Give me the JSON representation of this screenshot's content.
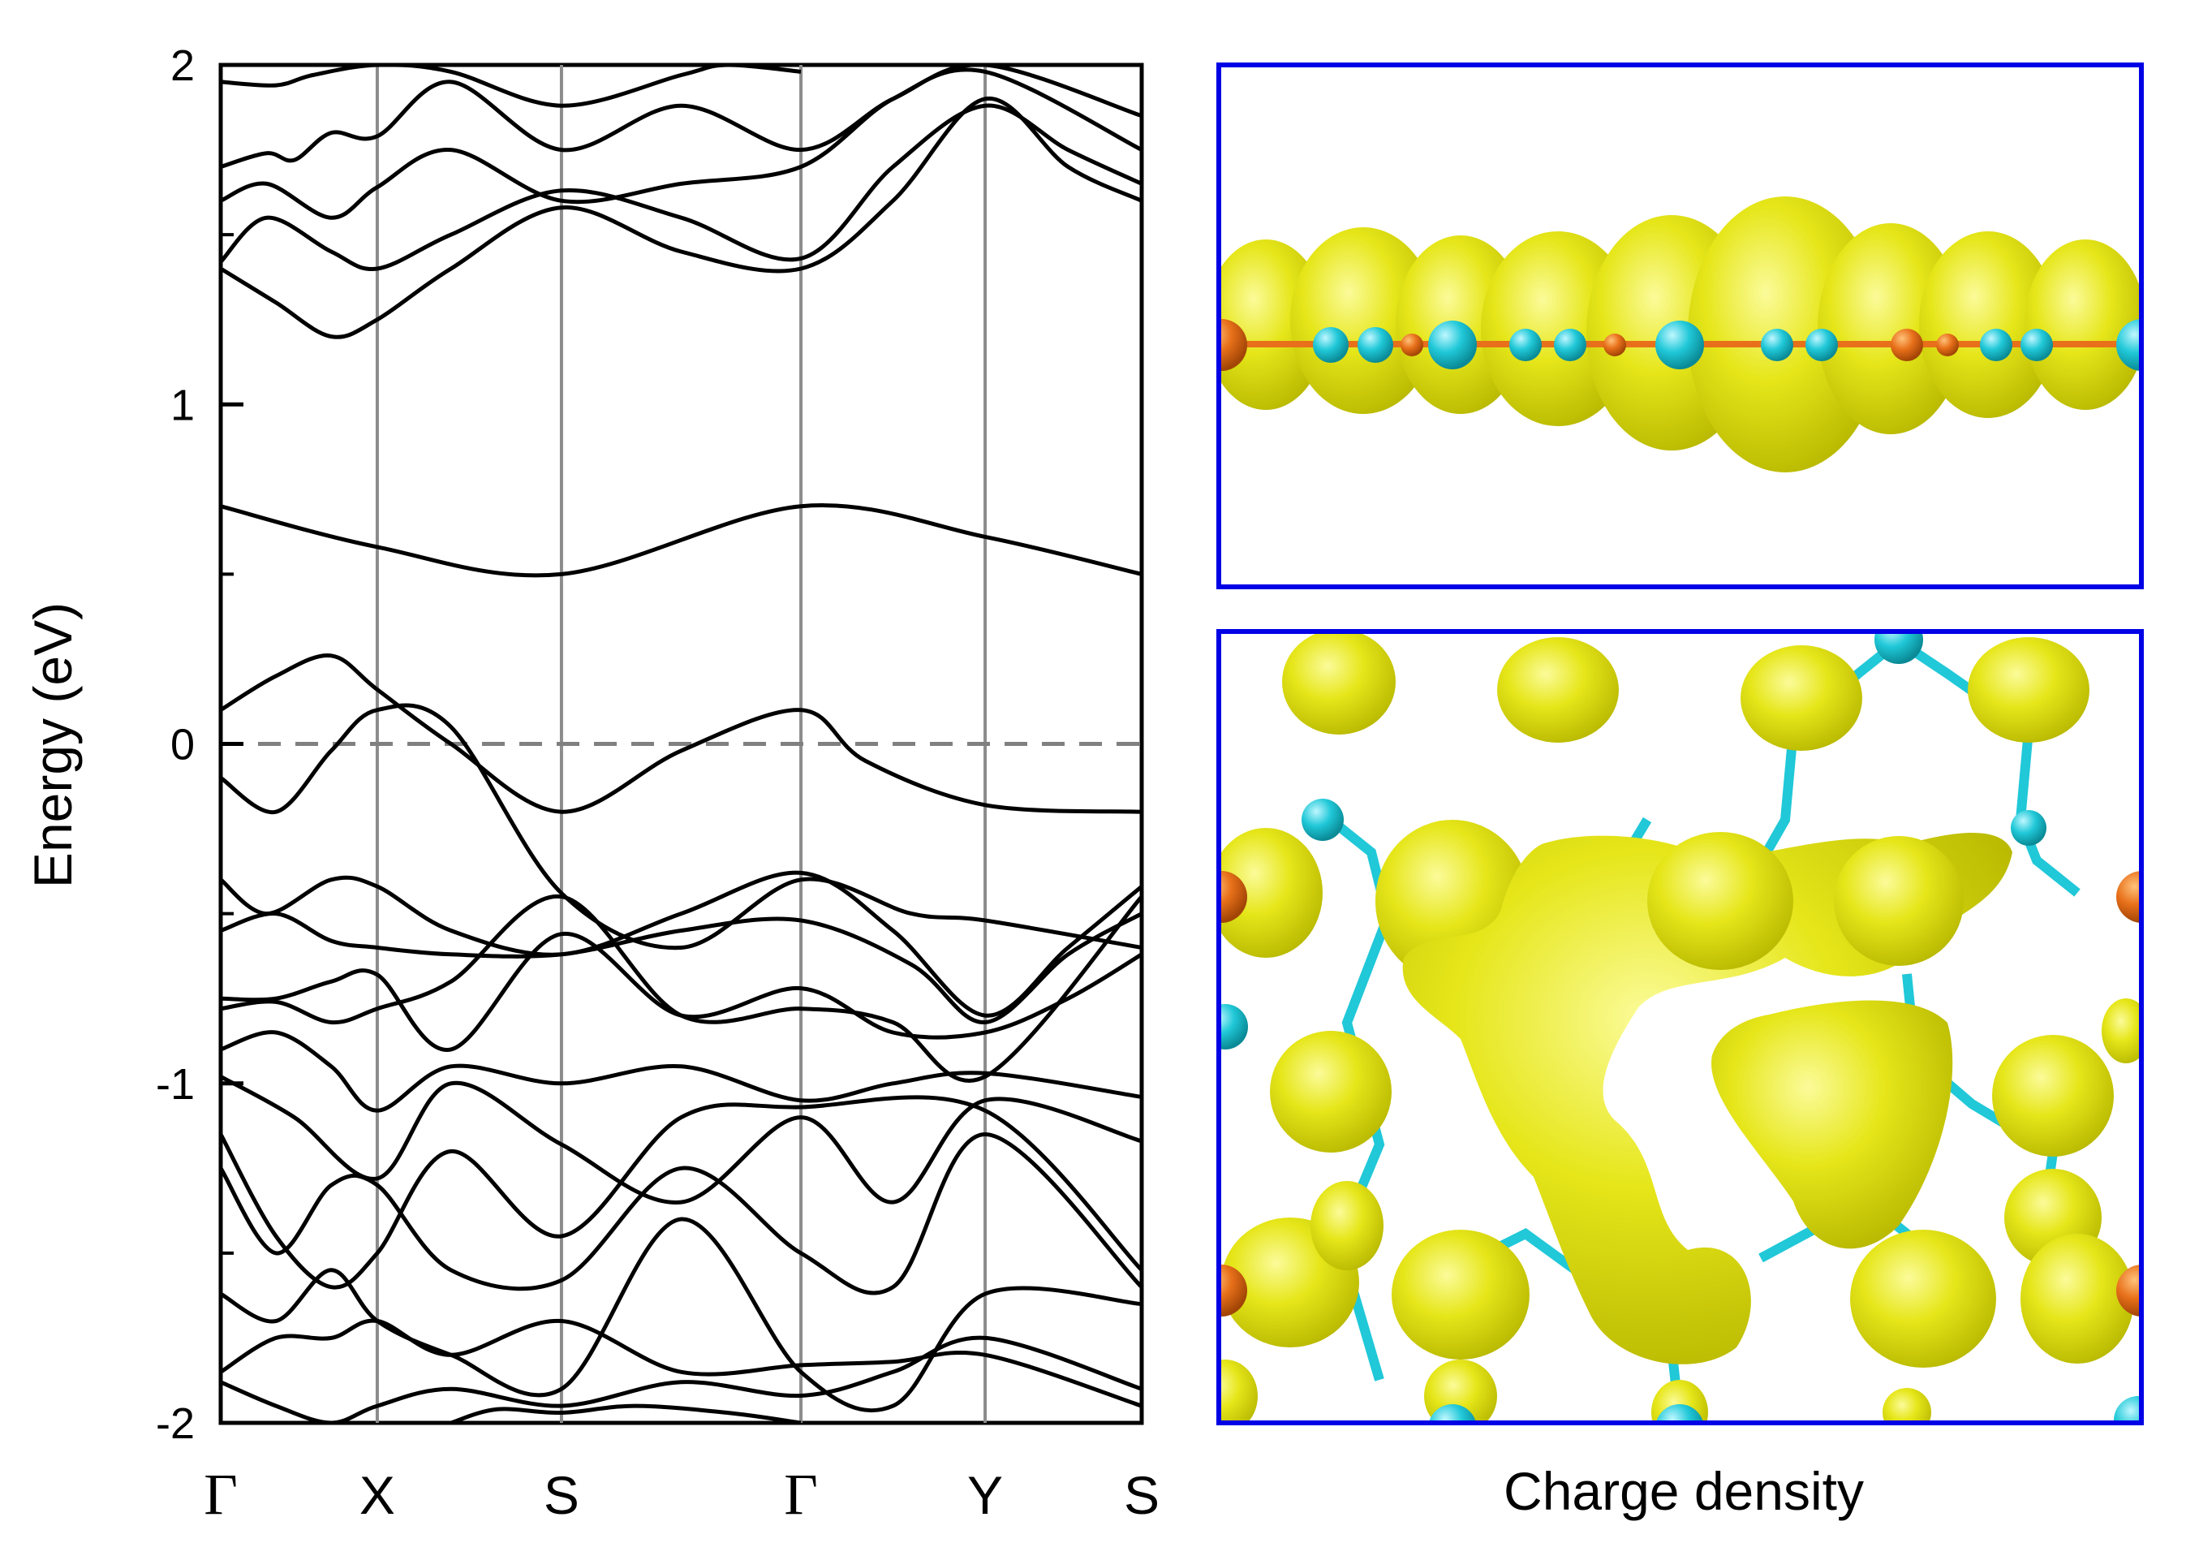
{
  "chart_data": {
    "type": "line",
    "ylabel": "Energy (eV)",
    "ylim": [
      -2,
      2
    ],
    "yticks": [
      {
        "value": 2,
        "label": "2"
      },
      {
        "value": 1,
        "label": "1"
      },
      {
        "value": 0,
        "label": "0"
      },
      {
        "value": -1,
        "label": "-1"
      },
      {
        "value": -2,
        "label": "-2"
      }
    ],
    "kpoints": [
      {
        "label": "Γ",
        "k": 0.0
      },
      {
        "label": "X",
        "k": 0.17
      },
      {
        "label": "S",
        "k": 0.37
      },
      {
        "label": "Γ",
        "k": 0.63
      },
      {
        "label": "Y",
        "k": 0.83
      },
      {
        "label": "S",
        "k": 1.0
      }
    ],
    "fermi_level": 0,
    "series": [
      {
        "k": [
          0,
          0.17,
          0.37,
          0.63,
          0.83,
          1.0
        ],
        "e": [
          0.7,
          0.58,
          0.5,
          0.7,
          0.61,
          0.5
        ]
      },
      {
        "k": [
          0,
          0.06,
          0.12,
          0.17,
          0.25,
          0.37,
          0.5,
          0.63,
          0.7,
          0.83,
          1.0
        ],
        "e": [
          0.1,
          0.2,
          0.26,
          0.16,
          0.0,
          -0.2,
          -0.02,
          0.1,
          -0.05,
          -0.18,
          -0.2
        ]
      },
      {
        "k": [
          0,
          0.06,
          0.12,
          0.17,
          0.25,
          0.37,
          0.5,
          0.63,
          0.75,
          0.83,
          1.0
        ],
        "e": [
          -0.1,
          -0.2,
          -0.02,
          0.1,
          0.05,
          -0.44,
          -0.6,
          -0.4,
          -0.5,
          -0.52,
          -0.6
        ]
      },
      {
        "k": [
          0,
          0.05,
          0.12,
          0.17,
          0.25,
          0.37,
          0.5,
          0.63,
          0.73,
          0.83,
          0.92,
          1.0
        ],
        "e": [
          -0.4,
          -0.5,
          -0.4,
          -0.42,
          -0.55,
          -0.62,
          -0.5,
          -0.38,
          -0.55,
          -0.8,
          -0.6,
          -0.42
        ]
      },
      {
        "k": [
          0,
          0.06,
          0.12,
          0.17,
          0.25,
          0.37,
          0.5,
          0.63,
          0.75,
          0.83,
          0.92,
          1.0
        ],
        "e": [
          -0.55,
          -0.5,
          -0.58,
          -0.6,
          -0.62,
          -0.62,
          -0.55,
          -0.52,
          -0.65,
          -0.82,
          -0.62,
          -0.5
        ]
      },
      {
        "k": [
          0,
          0.06,
          0.12,
          0.17,
          0.25,
          0.37,
          0.5,
          0.63,
          0.73,
          0.83,
          0.92,
          1.0
        ],
        "e": [
          -0.75,
          -0.75,
          -0.7,
          -0.68,
          -0.9,
          -0.56,
          -0.8,
          -0.72,
          -0.85,
          -0.85,
          -0.75,
          -0.62
        ]
      },
      {
        "k": [
          0,
          0.06,
          0.12,
          0.17,
          0.25,
          0.37,
          0.5,
          0.63,
          0.73,
          0.83,
          1.0
        ],
        "e": [
          -0.78,
          -0.76,
          -0.82,
          -0.78,
          -0.7,
          -0.45,
          -0.8,
          -0.78,
          -0.82,
          -0.98,
          -0.45
        ]
      },
      {
        "k": [
          0,
          0.06,
          0.12,
          0.17,
          0.25,
          0.37,
          0.5,
          0.63,
          0.73,
          0.83,
          1.0
        ],
        "e": [
          -0.9,
          -0.85,
          -0.95,
          -1.08,
          -0.95,
          -1.0,
          -0.95,
          -1.05,
          -1.0,
          -0.97,
          -1.04
        ]
      },
      {
        "k": [
          0,
          0.08,
          0.17,
          0.25,
          0.37,
          0.5,
          0.63,
          0.73,
          0.83,
          1.0
        ],
        "e": [
          -0.98,
          -1.1,
          -1.28,
          -1.0,
          -1.18,
          -1.35,
          -1.1,
          -1.35,
          -1.05,
          -1.17
        ]
      },
      {
        "k": [
          0,
          0.06,
          0.12,
          0.17,
          0.25,
          0.37,
          0.5,
          0.63,
          0.83,
          1.0
        ],
        "e": [
          -1.15,
          -1.45,
          -1.6,
          -1.5,
          -1.2,
          -1.45,
          -1.1,
          -1.07,
          -1.08,
          -1.55
        ]
      },
      {
        "k": [
          0,
          0.06,
          0.12,
          0.17,
          0.25,
          0.37,
          0.5,
          0.63,
          0.73,
          0.83,
          1.0
        ],
        "e": [
          -1.25,
          -1.5,
          -1.3,
          -1.3,
          -1.55,
          -1.58,
          -1.25,
          -1.5,
          -1.6,
          -1.15,
          -1.6
        ]
      },
      {
        "k": [
          0,
          0.06,
          0.12,
          0.17,
          0.25,
          0.37,
          0.5,
          0.63,
          0.73,
          0.83,
          1.0
        ],
        "e": [
          -1.62,
          -1.7,
          -1.55,
          -1.7,
          -1.8,
          -1.9,
          -1.4,
          -1.85,
          -1.95,
          -1.62,
          -1.65
        ]
      },
      {
        "k": [
          0,
          0.06,
          0.12,
          0.17,
          0.25,
          0.37,
          0.5,
          0.63,
          0.73,
          0.83,
          1.0
        ],
        "e": [
          -1.85,
          -1.75,
          -1.75,
          -1.7,
          -1.8,
          -1.7,
          -1.85,
          -1.83,
          -1.82,
          -1.8,
          -1.95
        ]
      },
      {
        "k": [
          0,
          0.06,
          0.12,
          0.17,
          0.25,
          0.37,
          0.5,
          0.63,
          0.73,
          0.83,
          1.0
        ],
        "e": [
          -1.88,
          -1.95,
          -2.0,
          -1.95,
          -1.9,
          -1.95,
          -1.88,
          -1.92,
          -1.85,
          -1.75,
          -1.9
        ]
      },
      {
        "k": [
          0.25,
          0.3,
          0.37,
          0.45,
          0.55,
          0.63
        ],
        "e": [
          -2.0,
          -1.96,
          -1.97,
          -1.95,
          -1.97,
          -2.0
        ]
      },
      {
        "k": [
          0,
          0.06,
          0.12,
          0.17,
          0.25,
          0.37,
          0.5,
          0.63,
          0.73,
          0.83,
          0.92,
          1.0
        ],
        "e": [
          1.4,
          1.3,
          1.2,
          1.25,
          1.4,
          1.58,
          1.45,
          1.4,
          1.6,
          1.9,
          1.7,
          1.6
        ]
      },
      {
        "k": [
          0,
          0.05,
          0.12,
          0.17,
          0.25,
          0.37,
          0.5,
          0.63,
          0.73,
          0.83,
          0.92,
          1.0
        ],
        "e": [
          1.42,
          1.55,
          1.45,
          1.4,
          1.5,
          1.63,
          1.55,
          1.43,
          1.7,
          1.88,
          1.75,
          1.65
        ]
      },
      {
        "k": [
          0,
          0.05,
          0.12,
          0.17,
          0.25,
          0.37,
          0.5,
          0.63,
          0.73,
          0.83,
          1.0
        ],
        "e": [
          1.6,
          1.65,
          1.55,
          1.64,
          1.75,
          1.6,
          1.65,
          1.7,
          1.9,
          1.98,
          1.75
        ]
      },
      {
        "k": [
          0,
          0.05,
          0.08,
          0.12,
          0.17,
          0.25,
          0.37,
          0.5,
          0.63,
          0.73,
          0.83,
          1.0
        ],
        "e": [
          1.7,
          1.74,
          1.72,
          1.8,
          1.79,
          1.95,
          1.75,
          1.88,
          1.75,
          1.9,
          2.0,
          1.85
        ]
      },
      {
        "k": [
          0,
          0.06,
          0.1,
          0.17,
          0.25,
          0.37,
          0.5,
          0.55,
          0.63
        ],
        "e": [
          1.95,
          1.94,
          1.97,
          2.0,
          1.98,
          1.88,
          1.97,
          2.0,
          1.98
        ]
      }
    ]
  },
  "caption": "Charge density"
}
